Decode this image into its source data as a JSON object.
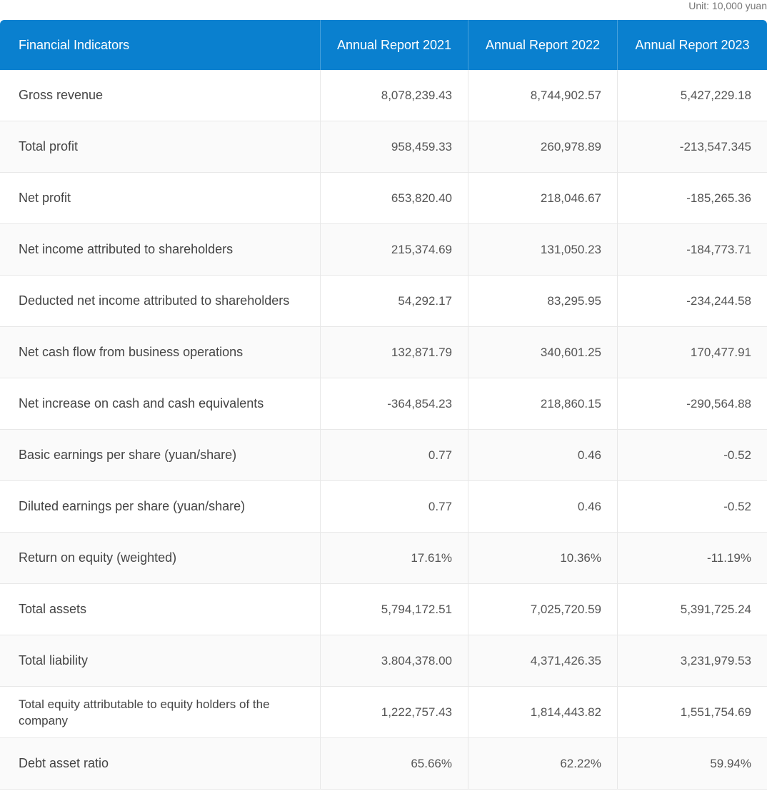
{
  "header": {
    "unit": "Unit: 10,000 yuan"
  },
  "table": {
    "columns": [
      "Financial Indicators",
      "Annual Report 2021",
      "Annual Report 2022",
      "Annual Report 2023"
    ],
    "rows": [
      [
        "Gross revenue",
        "8,078,239.43",
        "8,744,902.57",
        "5,427,229.18"
      ],
      [
        "Total profit",
        "958,459.33",
        "260,978.89",
        "-213,547.345"
      ],
      [
        "Net profit",
        "653,820.40",
        "218,046.67",
        "-185,265.36"
      ],
      [
        "Net income attributed to shareholders",
        "215,374.69",
        "131,050.23",
        "-184,773.71"
      ],
      [
        "Deducted net income attributed to shareholders",
        "54,292.17",
        "83,295.95",
        "-234,244.58"
      ],
      [
        "Net cash flow from business operations",
        "132,871.79",
        "340,601.25",
        "170,477.91"
      ],
      [
        "Net increase on cash and cash equivalents",
        "-364,854.23",
        "218,860.15",
        "-290,564.88"
      ],
      [
        "Basic earnings per share (yuan/share)",
        "0.77",
        "0.46",
        "-0.52"
      ],
      [
        "Diluted earnings per share (yuan/share)",
        "0.77",
        "0.46",
        "-0.52"
      ],
      [
        "Return on equity (weighted)",
        "17.61%",
        "10.36%",
        "-11.19%"
      ],
      [
        "Total assets",
        "5,794,172.51",
        "7,025,720.59",
        "5,391,725.24"
      ],
      [
        "Total liability",
        "3.804,378.00",
        "4,371,426.35",
        "3,231,979.53"
      ],
      [
        "Total equity attributable to equity holders of the company",
        "1,222,757.43",
        "1,814,443.82",
        "1,551,754.69"
      ],
      [
        "Debt asset ratio",
        "65.66%",
        "62.22%",
        "59.94%"
      ]
    ]
  }
}
